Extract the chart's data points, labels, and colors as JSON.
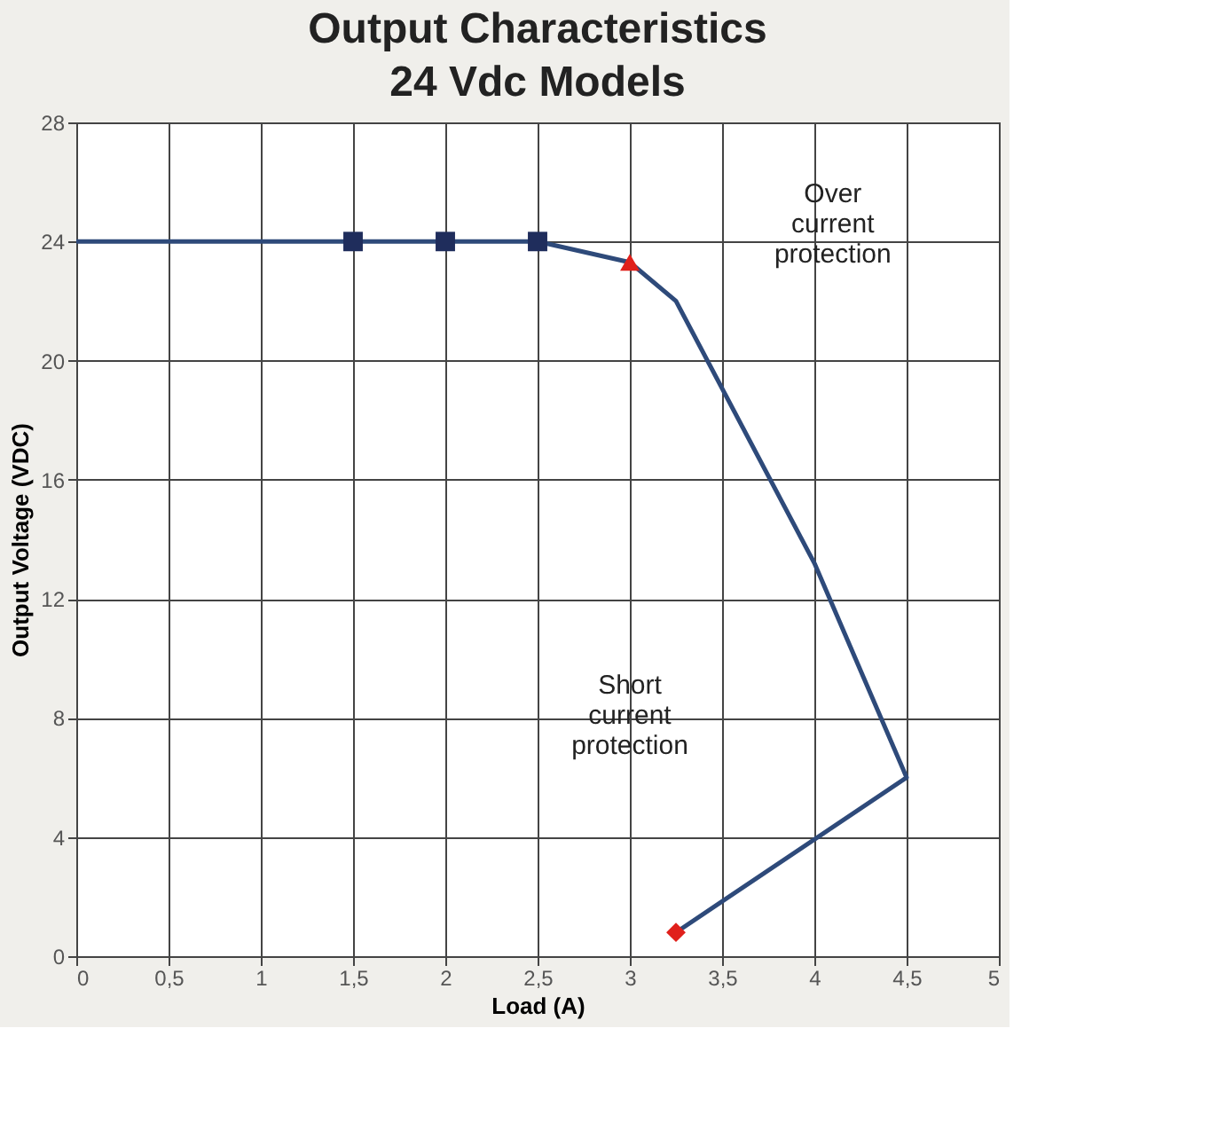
{
  "chart_data": {
    "type": "line",
    "title": "Output Characteristics",
    "subtitle": "24 Vdc Models",
    "xlabel": "Load (A)",
    "ylabel": "Output Voltage (VDC)",
    "series": [
      {
        "color": "#2e4a7a",
        "x": [
          0,
          2.5,
          3,
          3.25,
          4,
          4.5,
          3.25
        ],
        "values": [
          24,
          24,
          23.3,
          22,
          13.2,
          6,
          0.8
        ]
      },
      {
        "type": "scatter",
        "marker": "square",
        "color": "#1f2d5c",
        "x": [
          1.5,
          2,
          2.5
        ],
        "values": [
          24,
          24,
          24
        ]
      },
      {
        "type": "scatter",
        "marker": "triangle",
        "color": "#e0201b",
        "x": [
          3
        ],
        "values": [
          23.3
        ]
      },
      {
        "type": "scatter",
        "marker": "diamond",
        "color": "#e0201b",
        "x": [
          3.25
        ],
        "values": [
          0.8
        ]
      }
    ],
    "xlim": [
      0,
      5
    ],
    "xticks": [
      0,
      {
        "value": 0.5,
        "label": "0,5"
      },
      1,
      {
        "value": 1.5,
        "label": "1,5"
      },
      2,
      {
        "value": 2.5,
        "label": "2,5"
      },
      3,
      {
        "value": 3.5,
        "label": "3,5"
      },
      4,
      {
        "value": 4.5,
        "label": "4,5"
      },
      5
    ],
    "ylim": [
      0,
      28
    ],
    "yticks": [
      0,
      4,
      8,
      12,
      16,
      20,
      24,
      28
    ],
    "annotations": [
      "Over current protection",
      "Short current protection"
    ],
    "grid": true
  }
}
